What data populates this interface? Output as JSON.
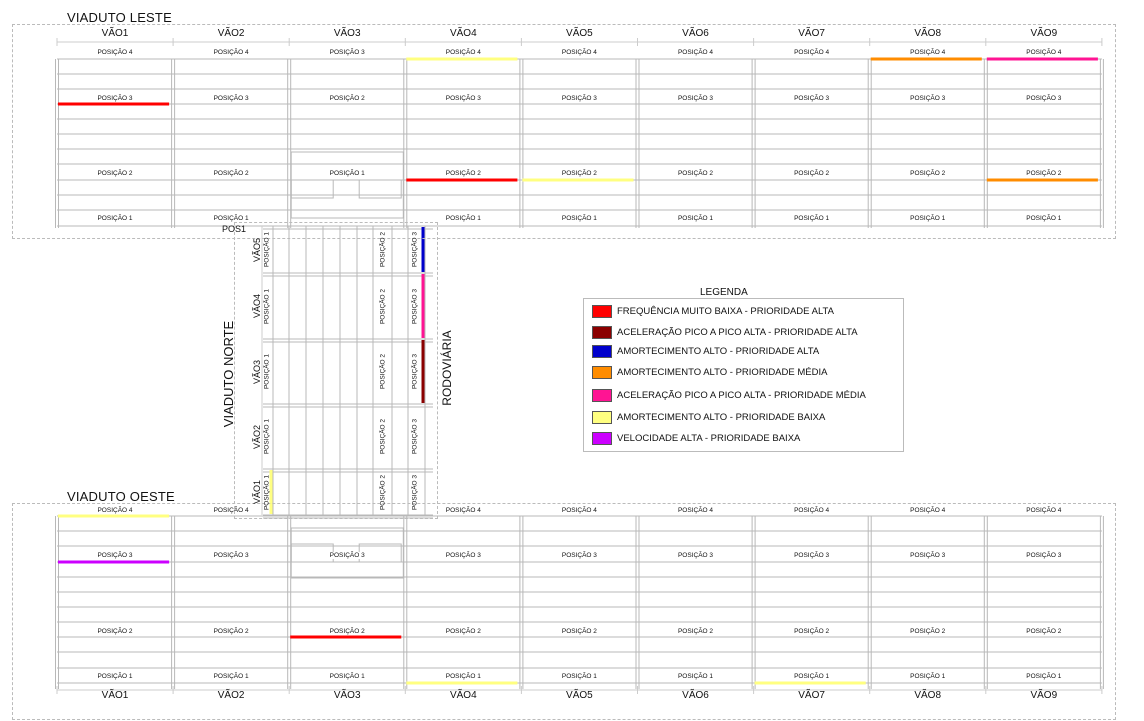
{
  "east": {
    "title": "VIADUTO LESTE",
    "spans": [
      "VÃO1",
      "VÃO2",
      "VÃO3",
      "VÃO4",
      "VÃO5",
      "VÃO6",
      "VÃO7",
      "VÃO8",
      "VÃO9"
    ],
    "row_pos4": [
      "POSIÇÃO 4",
      "POSIÇÃO 4",
      "POSIÇÃO 3",
      "POSIÇÃO 4",
      "POSIÇÃO 4",
      "POSIÇÃO 4",
      "POSIÇÃO 4",
      "POSIÇÃO 4",
      "POSIÇÃO 4"
    ],
    "row_pos3": [
      "POSIÇÃO 3",
      "POSIÇÃO 3",
      "POSIÇÃO 2",
      "POSIÇÃO 3",
      "POSIÇÃO 3",
      "POSIÇÃO 3",
      "POSIÇÃO 3",
      "POSIÇÃO 3",
      "POSIÇÃO 3"
    ],
    "row_pos2": [
      "POSIÇÃO 2",
      "POSIÇÃO 2",
      "POSIÇÃO 1",
      "POSIÇÃO 2",
      "POSIÇÃO 2",
      "POSIÇÃO 2",
      "POSIÇÃO 2",
      "POSIÇÃO 2",
      "POSIÇÃO 2"
    ],
    "row_pos1": [
      "POSIÇÃO 1",
      "POSIÇÃO 1",
      "",
      "POSIÇÃO 1",
      "POSIÇÃO 1",
      "POSIÇÃO 1",
      "POSIÇÃO 1",
      "POSIÇÃO 1",
      "POSIÇÃO 1"
    ]
  },
  "west": {
    "title": "VIADUTO OESTE",
    "spans": [
      "VÃO1",
      "VÃO2",
      "VÃO3",
      "VÃO4",
      "VÃO5",
      "VÃO6",
      "VÃO7",
      "VÃO8",
      "VÃO9"
    ],
    "row_pos4": [
      "POSIÇÃO 4",
      "POSIÇÃO 4",
      "",
      "POSIÇÃO 4",
      "POSIÇÃO 4",
      "POSIÇÃO 4",
      "POSIÇÃO 4",
      "POSIÇÃO 4",
      "POSIÇÃO 4"
    ],
    "row_pos3": [
      "POSIÇÃO 3",
      "POSIÇÃO 3",
      "POSIÇÃO 3",
      "POSIÇÃO 3",
      "POSIÇÃO 3",
      "POSIÇÃO 3",
      "POSIÇÃO 3",
      "POSIÇÃO 3",
      "POSIÇÃO 3"
    ],
    "row_pos2": [
      "POSIÇÃO 2",
      "POSIÇÃO 2",
      "POSIÇÃO 2",
      "POSIÇÃO 2",
      "POSIÇÃO 2",
      "POSIÇÃO 2",
      "POSIÇÃO 2",
      "POSIÇÃO 2",
      "POSIÇÃO 2"
    ],
    "row_pos1": [
      "POSIÇÃO 1",
      "POSIÇÃO 1",
      "POSIÇÃO 1",
      "POSIÇÃO 1",
      "POSIÇÃO 1",
      "POSIÇÃO 1",
      "POSIÇÃO 1",
      "POSIÇÃO 1",
      "POSIÇÃO 1"
    ]
  },
  "north": {
    "title": "VIADUTO NORTE",
    "road_label": "RODOVIÁRIA",
    "pos1_top": "POS1",
    "spans": [
      "VÃO5",
      "VÃO4",
      "VÃO3",
      "VÃO2",
      "VÃO1"
    ],
    "pos1": "POSIÇÃO 1",
    "pos2": "POSIÇÃO 2",
    "pos3": "POSIÇÃO 3"
  },
  "legend": {
    "title": "LEGENDA",
    "items": [
      {
        "label": "FREQUÊNCIA MUITO BAIXA - PRIORIDADE ALTA",
        "color": "#ff0000"
      },
      {
        "label": "ACELERAÇÃO PICO A PICO ALTA - PRIORIDADE ALTA",
        "color": "#8b0000"
      },
      {
        "label": "AMORTECIMENTO ALTO - PRIORIDADE ALTA",
        "color": "#0000cc"
      },
      {
        "label": "AMORTECIMENTO ALTO - PRIORIDADE MÉDIA",
        "color": "#ff8c00"
      },
      {
        "label": "ACELERAÇÃO PICO A PICO ALTA - PRIORIDADE MÉDIA",
        "color": "#ff1493"
      },
      {
        "label": "AMORTECIMENTO ALTO - PRIORIDADE BAIXA",
        "color": "#ffff80"
      },
      {
        "label": "VELOCIDADE ALTA - PRIORIDADE BAIXA",
        "color": "#cc00ff"
      }
    ]
  },
  "highlights": {
    "east": [
      {
        "span": 1,
        "position": 3,
        "category": "FREQUÊNCIA MUITO BAIXA - PRIORIDADE ALTA"
      },
      {
        "span": 4,
        "position": 4,
        "category": "AMORTECIMENTO ALTO - PRIORIDADE BAIXA"
      },
      {
        "span": 4,
        "position": 2,
        "category": "FREQUÊNCIA MUITO BAIXA - PRIORIDADE ALTA"
      },
      {
        "span": 5,
        "position": 2,
        "category": "AMORTECIMENTO ALTO - PRIORIDADE BAIXA"
      },
      {
        "span": 8,
        "position": 4,
        "category": "AMORTECIMENTO ALTO - PRIORIDADE MÉDIA"
      },
      {
        "span": 9,
        "position": 4,
        "category": "ACELERAÇÃO PICO A PICO ALTA - PRIORIDADE MÉDIA"
      },
      {
        "span": 9,
        "position": 2,
        "category": "AMORTECIMENTO ALTO - PRIORIDADE MÉDIA"
      }
    ],
    "west": [
      {
        "span": 1,
        "position": 4,
        "category": "AMORTECIMENTO ALTO - PRIORIDADE BAIXA"
      },
      {
        "span": 1,
        "position": 3,
        "category": "VELOCIDADE ALTA - PRIORIDADE BAIXA"
      },
      {
        "span": 3,
        "position": 2,
        "category": "FREQUÊNCIA MUITO BAIXA - PRIORIDADE ALTA"
      },
      {
        "span": 4,
        "position": 1,
        "category": "AMORTECIMENTO ALTO - PRIORIDADE BAIXA"
      },
      {
        "span": 7,
        "position": 1,
        "category": "AMORTECIMENTO ALTO - PRIORIDADE BAIXA"
      }
    ],
    "north": [
      {
        "span": 5,
        "position": 3,
        "category": "AMORTECIMENTO ALTO - PRIORIDADE ALTA"
      },
      {
        "span": 4,
        "position": 3,
        "category": "ACELERAÇÃO PICO A PICO ALTA - PRIORIDADE MÉDIA"
      },
      {
        "span": 3,
        "position": 3,
        "category": "ACELERAÇÃO PICO A PICO ALTA - PRIORIDADE ALTA"
      },
      {
        "span": 1,
        "position": 1,
        "category": "AMORTECIMENTO ALTO - PRIORIDADE BAIXA"
      }
    ]
  }
}
